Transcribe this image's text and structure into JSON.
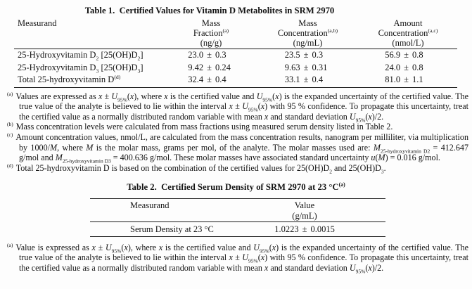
{
  "sym": {
    "pm": "±"
  },
  "table1": {
    "title": "Table 1.  Certified Values for Vitamin D Metabolites in SRM 2970",
    "columns": {
      "measurand": "Measurand",
      "mass_fraction": {
        "line1": "Mass",
        "line2": [
          {
            "t": "Fraction"
          },
          {
            "t": "(a)",
            "s": "sup"
          }
        ],
        "line3": "(ng/g)"
      },
      "mass_concentration": {
        "line1": "Mass",
        "line2": [
          {
            "t": "Concentration"
          },
          {
            "t": "(a,b)",
            "s": "sup"
          }
        ],
        "line3": "(ng/mL)"
      },
      "amount_concentration": {
        "line1": "Amount",
        "line2": [
          {
            "t": "Concentration"
          },
          {
            "t": "(a,c)",
            "s": "sup"
          }
        ],
        "line3": "(nmol/L)"
      }
    },
    "rows": [
      {
        "measurand": [
          {
            "t": "25-Hydroxyvitamin D"
          },
          {
            "t": "2",
            "s": "sub"
          },
          {
            "t": " [25(OH)D"
          },
          {
            "t": "2",
            "s": "sub"
          },
          {
            "t": "]"
          }
        ],
        "mf": {
          "v": "23.0",
          "u": "0.3"
        },
        "mc": {
          "v": "23.5",
          "u": "0.3"
        },
        "ac": {
          "v": "56.9",
          "u": "0.8"
        }
      },
      {
        "measurand": [
          {
            "t": "25-Hydroxyvitamin D"
          },
          {
            "t": "3",
            "s": "sub"
          },
          {
            "t": " [25(OH)D"
          },
          {
            "t": "3",
            "s": "sub"
          },
          {
            "t": "]"
          }
        ],
        "mf": {
          "v": "9.42",
          "u": "0.24"
        },
        "mc": {
          "v": "9.63",
          "u": "0.31"
        },
        "ac": {
          "v": "24.0",
          "u": "0.8"
        }
      },
      {
        "measurand": [
          {
            "t": "Total 25-hydroxyvitamin D"
          },
          {
            "t": "(d)",
            "s": "sup"
          }
        ],
        "mf": {
          "v": "32.4",
          "u": "0.4"
        },
        "mc": {
          "v": "33.1",
          "u": "0.4"
        },
        "ac": {
          "v": "81.0",
          "u": "1.1"
        }
      }
    ],
    "footnotes": [
      {
        "marker": "(a)",
        "segments": [
          {
            "t": "Values are expressed as "
          },
          {
            "t": "x",
            "s": "i"
          },
          {
            "t": " ± "
          },
          {
            "t": "U",
            "s": "i"
          },
          {
            "t": "95%",
            "s": "sub"
          },
          {
            "t": "("
          },
          {
            "t": "x",
            "s": "i"
          },
          {
            "t": "), where "
          },
          {
            "t": "x",
            "s": "i"
          },
          {
            "t": " is the certified value and "
          },
          {
            "t": "U",
            "s": "i"
          },
          {
            "t": "95%",
            "s": "sub"
          },
          {
            "t": "("
          },
          {
            "t": "x",
            "s": "i"
          },
          {
            "t": ") is the expanded uncertainty of the certified value. The true value of the analyte is believed to lie within the interval "
          },
          {
            "t": "x",
            "s": "i"
          },
          {
            "t": " ± "
          },
          {
            "t": "U",
            "s": "i"
          },
          {
            "t": "95%",
            "s": "sub"
          },
          {
            "t": "("
          },
          {
            "t": "x",
            "s": "i"
          },
          {
            "t": ") with 95 % confidence. To propagate this uncertainty, treat the certified value as a normally distributed random variable with mean "
          },
          {
            "t": "x",
            "s": "i"
          },
          {
            "t": " and standard deviation "
          },
          {
            "t": "U",
            "s": "i"
          },
          {
            "t": "95%",
            "s": "sub"
          },
          {
            "t": "("
          },
          {
            "t": "x",
            "s": "i"
          },
          {
            "t": ")/2."
          }
        ]
      },
      {
        "marker": "(b)",
        "segments": [
          {
            "t": "Mass concentration levels were calculated from mass fractions using measured serum density listed in Table 2."
          }
        ]
      },
      {
        "marker": "(c)",
        "segments": [
          {
            "t": "Amount concentration values, nmol/L, are calculated from the mass concentration results, nanogram per milliliter, via multiplication by 1000/"
          },
          {
            "t": "M",
            "s": "i"
          },
          {
            "t": ", where "
          },
          {
            "t": "M",
            "s": "i"
          },
          {
            "t": " is the molar mass, grams per mol, of the analyte. The molar masses used are: "
          },
          {
            "t": "M",
            "s": "i"
          },
          {
            "t": "25-hydroxyvitamin D2",
            "s": "sub"
          },
          {
            "t": " = 412.647 g/mol and "
          },
          {
            "t": "M",
            "s": "i"
          },
          {
            "t": "25-hydroxyvitamin D3",
            "s": "sub"
          },
          {
            "t": " = 400.636 g/mol. These molar masses have associated standard uncertainty "
          },
          {
            "t": "u",
            "s": "i"
          },
          {
            "t": "("
          },
          {
            "t": "M",
            "s": "i"
          },
          {
            "t": ") = 0.016 g/mol."
          }
        ]
      },
      {
        "marker": "(d)",
        "segments": [
          {
            "t": "Total 25-hydroxyvitamin D is based on the combination of the certified values for 25(OH)D"
          },
          {
            "t": "2",
            "s": "sub"
          },
          {
            "t": " and 25(OH)D"
          },
          {
            "t": "3",
            "s": "sub"
          },
          {
            "t": "."
          }
        ]
      }
    ]
  },
  "table2": {
    "title": [
      {
        "t": "Table 2.  Certified Serum Density of SRM 2970 at 23 °C"
      },
      {
        "t": "(a)",
        "s": "sup"
      }
    ],
    "columns": {
      "measurand": "Measurand",
      "value": {
        "line1": "Value",
        "line2": "(g/mL)"
      }
    },
    "row": {
      "measurand": "Serum Density at 23 °C",
      "value": {
        "v": "1.0223",
        "u": "0.0015"
      }
    },
    "footnotes": [
      {
        "marker": "(a)",
        "segments": [
          {
            "t": "Value is expressed as "
          },
          {
            "t": "x",
            "s": "i"
          },
          {
            "t": " ± "
          },
          {
            "t": "U",
            "s": "i"
          },
          {
            "t": "95%",
            "s": "sub"
          },
          {
            "t": "("
          },
          {
            "t": "x",
            "s": "i"
          },
          {
            "t": "), where "
          },
          {
            "t": "x",
            "s": "i"
          },
          {
            "t": " is the certified value and "
          },
          {
            "t": "U",
            "s": "i"
          },
          {
            "t": "95%",
            "s": "sub"
          },
          {
            "t": "("
          },
          {
            "t": "x",
            "s": "i"
          },
          {
            "t": ") is the expanded uncertainty of the certified value. The true value of the analyte is believed to lie within the interval "
          },
          {
            "t": "x",
            "s": "i"
          },
          {
            "t": " ± "
          },
          {
            "t": "U",
            "s": "i"
          },
          {
            "t": "95%",
            "s": "sub"
          },
          {
            "t": "("
          },
          {
            "t": "x",
            "s": "i"
          },
          {
            "t": ") with 95 % confidence. To propagate this uncertainty, treat the certified value as a normally distributed random variable with mean "
          },
          {
            "t": "x",
            "s": "i"
          },
          {
            "t": " and standard deviation "
          },
          {
            "t": "U",
            "s": "i"
          },
          {
            "t": "95%",
            "s": "sub"
          },
          {
            "t": "("
          },
          {
            "t": "x",
            "s": "i"
          },
          {
            "t": ")/2."
          }
        ]
      }
    ]
  }
}
